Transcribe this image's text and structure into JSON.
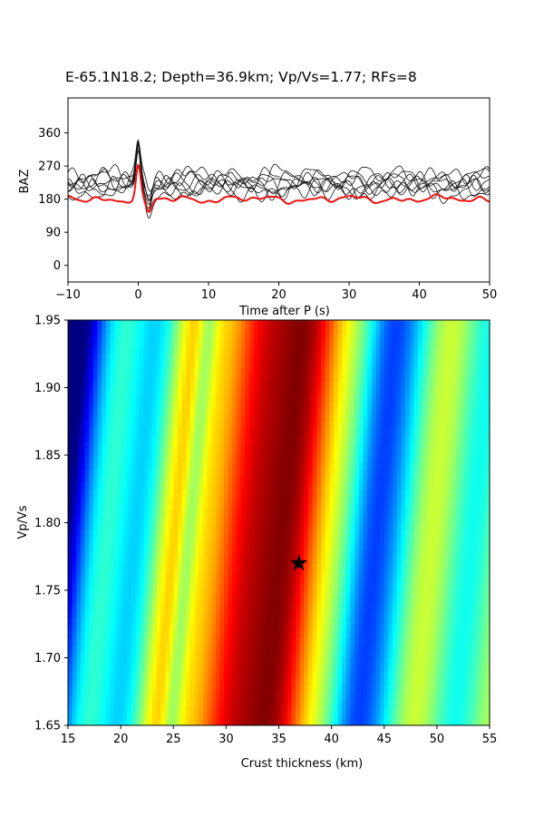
{
  "title": "E-65.1N18.2; Depth=36.9km; Vp/Vs=1.77; RFs=8",
  "chart_data": [
    {
      "type": "line",
      "xlabel": "Time after P (s)",
      "ylabel": "BAZ",
      "xlim": [
        -10,
        50
      ],
      "ylim": [
        -45,
        455
      ],
      "xticks": [
        "−10",
        "0",
        "10",
        "20",
        "30",
        "40",
        "50"
      ],
      "yticks": [
        "0",
        "90",
        "180",
        "270",
        "360"
      ],
      "trace_count": 8,
      "trace_baselines": [
        225,
        215,
        210,
        235,
        205,
        220,
        240,
        230
      ],
      "stack_color": "#ee1111",
      "trace_color": "#111111",
      "stack_baseline": 180,
      "peak_time": 0,
      "grid": false
    },
    {
      "type": "heatmap",
      "xlabel": "Crust thickness (km)",
      "ylabel": "Vp/Vs",
      "xlim": [
        15,
        55
      ],
      "ylim": [
        1.65,
        1.95
      ],
      "xticks": [
        "15",
        "20",
        "25",
        "30",
        "35",
        "40",
        "45",
        "50",
        "55"
      ],
      "yticks": [
        "1.65",
        "1.70",
        "1.75",
        "1.80",
        "1.85",
        "1.90",
        "1.95"
      ],
      "colormap": "jet",
      "best_fit": {
        "thickness": 36.9,
        "vpvs": 1.77,
        "marker": "star"
      },
      "grid": false
    }
  ]
}
